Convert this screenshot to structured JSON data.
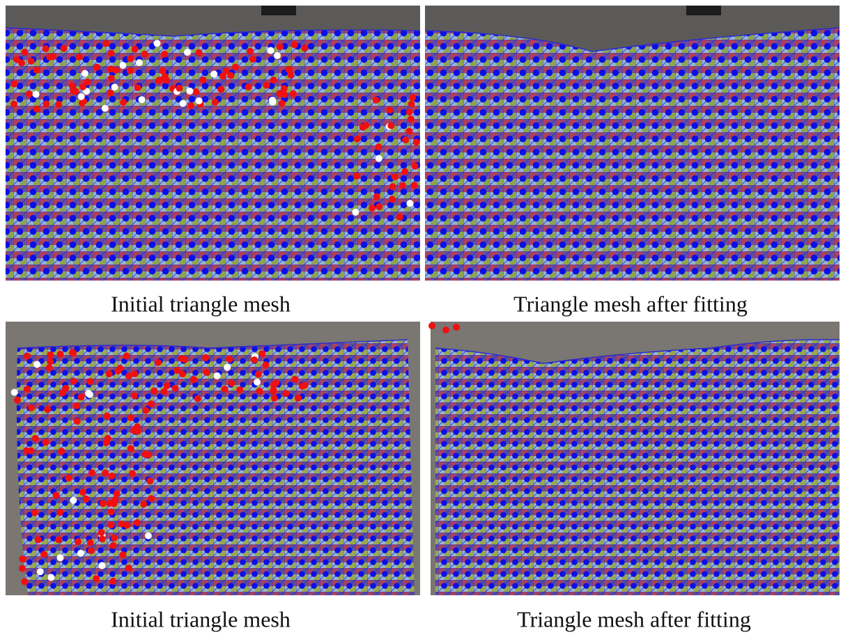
{
  "panels": [
    {
      "caption": "Initial triangle mesh"
    },
    {
      "caption": "Triangle mesh after fitting"
    },
    {
      "caption": "Initial triangle mesh"
    },
    {
      "caption": "Triangle mesh after fitting"
    }
  ]
}
